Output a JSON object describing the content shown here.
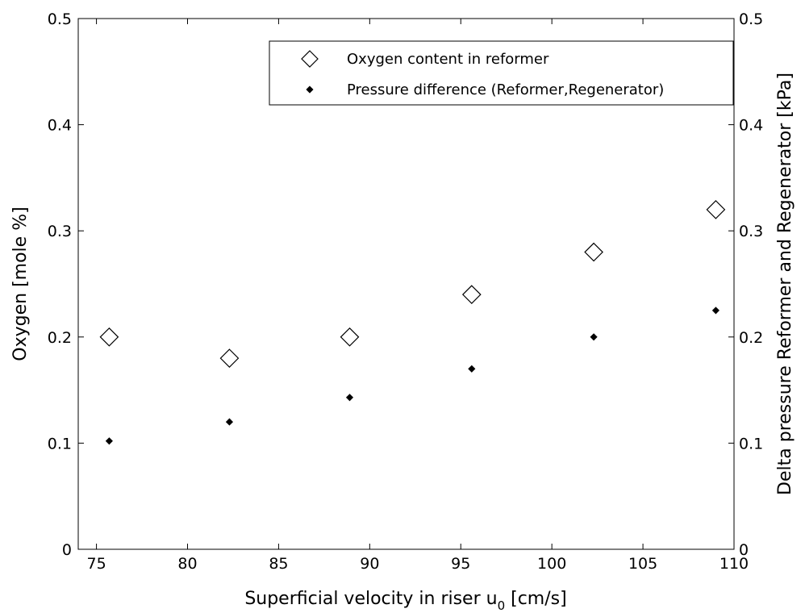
{
  "chart_data": {
    "type": "scatter",
    "xlabel": "Superficial velocity in riser u",
    "xlabel_sub": "0",
    "xlabel_suffix": " [cm/s]",
    "ylabel_left": "Oxygen [mole %]",
    "ylabel_right": "Delta pressure Reformer and Regenerator [kPa]",
    "xlim": [
      74,
      110
    ],
    "ylim_left": [
      0,
      0.5
    ],
    "ylim_right": [
      0,
      0.5
    ],
    "x_ticks": [
      "75",
      "80",
      "85",
      "90",
      "95",
      "100",
      "105",
      "110"
    ],
    "y_ticks_left": [
      "0",
      "0.1",
      "0.2",
      "0.3",
      "0.4",
      "0.5"
    ],
    "y_ticks_right": [
      "0",
      "0.1",
      "0.2",
      "0.3",
      "0.4",
      "0.5"
    ],
    "legend_position": "top-right",
    "series": [
      {
        "name": "Oxygen content in reformer",
        "axis": "left",
        "marker": "open-diamond",
        "x": [
          75.7,
          82.3,
          88.9,
          95.6,
          102.3,
          109.0
        ],
        "y": [
          0.2,
          0.18,
          0.2,
          0.24,
          0.28,
          0.32
        ]
      },
      {
        "name": "Pressure difference (Reformer,Regenerator)",
        "axis": "right",
        "marker": "filled-diamond",
        "x": [
          75.7,
          82.3,
          88.9,
          95.6,
          102.3,
          109.0
        ],
        "y": [
          0.102,
          0.12,
          0.143,
          0.17,
          0.2,
          0.225
        ]
      }
    ]
  }
}
